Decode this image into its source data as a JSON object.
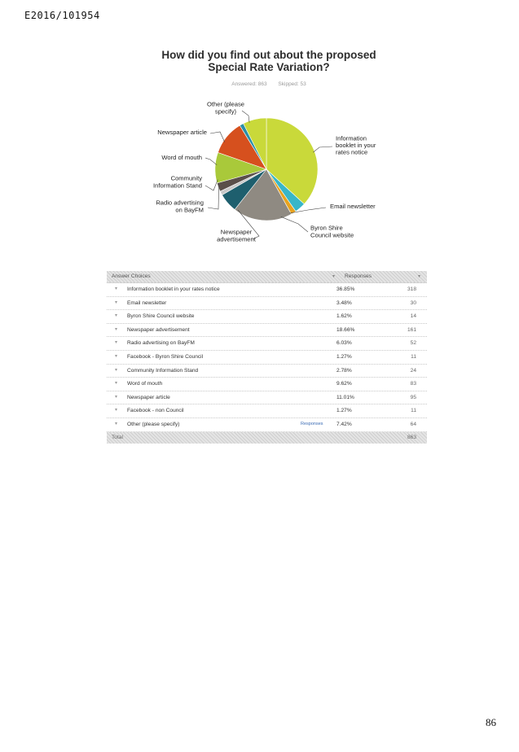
{
  "document": {
    "reference": "E2016/101954",
    "page_number": "86"
  },
  "survey": {
    "title_line1": "How did you find out about the proposed",
    "title_line2": "Special Rate Variation?",
    "answered": "Answered: 863",
    "skipped": "Skipped: 53"
  },
  "chart_data": {
    "type": "pie",
    "title": "How did you find out about the proposed Special Rate Variation?",
    "labels": [
      "Information booklet in your rates notice",
      "Email newsletter",
      "Byron Shire Council website",
      "Newspaper advertisement",
      "Radio advertising on BayFM",
      "Facebook - Byron Shire Council",
      "Community Information Stand",
      "Word of mouth",
      "Newspaper article",
      "Facebook - non Council",
      "Other (please specify)"
    ],
    "values": [
      36.85,
      3.48,
      1.62,
      18.66,
      6.03,
      1.27,
      2.78,
      9.62,
      11.01,
      1.27,
      7.42
    ],
    "colors": [
      "#c9d93a",
      "#38b6c8",
      "#e8a320",
      "#8f8a82",
      "#1e5f6e",
      "#c8c8c8",
      "#5a4f4a",
      "#a9c93a",
      "#d6501e",
      "#2b8fa8",
      "#c9d93a"
    ],
    "callouts": [
      {
        "text": "Information\nbooklet in your\nrates notice"
      },
      {
        "text": "Email newsletter"
      },
      {
        "text": "Byron Shire\nCouncil website"
      },
      {
        "text": "Newspaper\nadvertisement"
      },
      {
        "text": "Radio advertising\non BayFM"
      },
      {
        "text": "Community\nInformation Stand"
      },
      {
        "text": "Word of mouth"
      },
      {
        "text": "Newspaper article"
      },
      {
        "text": "Other (please\nspecify)"
      }
    ]
  },
  "table": {
    "header_choices": "Answer Choices",
    "header_responses": "Responses",
    "footer_label": "Total",
    "footer_total": "863",
    "response_link": "Responses",
    "rows": [
      {
        "label": "Information booklet in your rates notice",
        "pct": "36.85%",
        "count": "318"
      },
      {
        "label": "Email newsletter",
        "pct": "3.48%",
        "count": "30"
      },
      {
        "label": "Byron Shire Council website",
        "pct": "1.62%",
        "count": "14"
      },
      {
        "label": "Newspaper advertisement",
        "pct": "18.66%",
        "count": "161"
      },
      {
        "label": "Radio advertising on BayFM",
        "pct": "6.03%",
        "count": "52"
      },
      {
        "label": "Facebook - Byron Shire Council",
        "pct": "1.27%",
        "count": "11"
      },
      {
        "label": "Community Information Stand",
        "pct": "2.78%",
        "count": "24"
      },
      {
        "label": "Word of mouth",
        "pct": "9.62%",
        "count": "83"
      },
      {
        "label": "Newspaper article",
        "pct": "11.01%",
        "count": "95"
      },
      {
        "label": "Facebook - non Council",
        "pct": "1.27%",
        "count": "11"
      },
      {
        "label": "Other (please specify)",
        "pct": "7.42%",
        "count": "64"
      }
    ]
  }
}
